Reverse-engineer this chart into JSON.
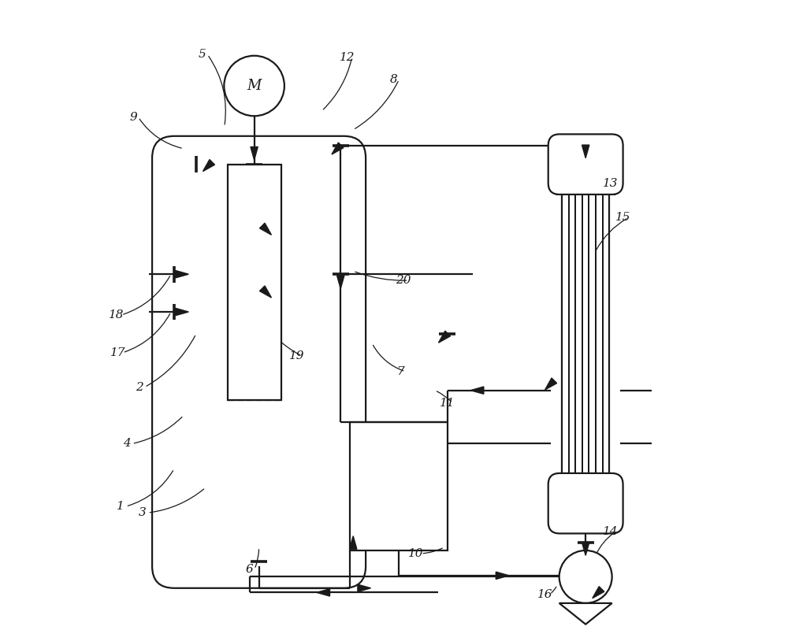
{
  "bg_color": "#ffffff",
  "line_color": "#1a1a1a",
  "lw": 1.6,
  "figsize": [
    10,
    8
  ],
  "dpi": 100
}
